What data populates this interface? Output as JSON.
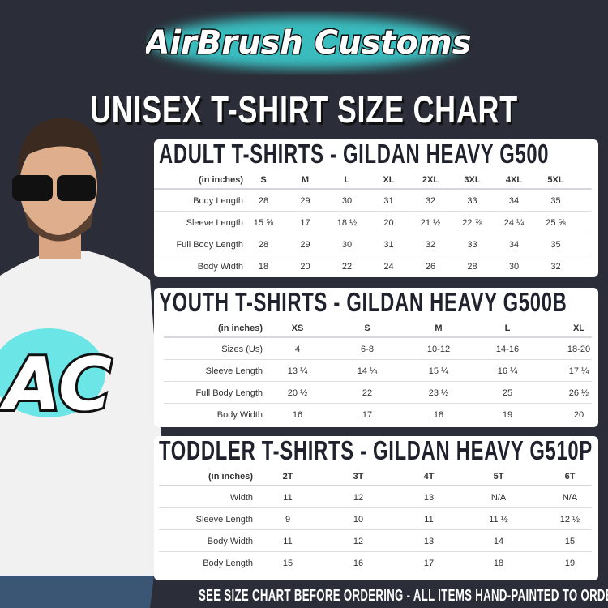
{
  "logo": {
    "text": "AirBrush Customs",
    "glow_color": "#3de0e0"
  },
  "title": "UNISEX T-SHIRT SIZE CHART",
  "colors": {
    "background": "#2b2e38",
    "panel": "#ffffff",
    "heading": "#1f222c",
    "accent": "#3de0e0"
  },
  "tables": [
    {
      "id": "adult",
      "title": "ADULT T-SHIRTS - GILDAN HEAVY G500",
      "unit_label": "(in inches)",
      "columns": [
        "S",
        "M",
        "L",
        "XL",
        "2XL",
        "3XL",
        "4XL",
        "5XL"
      ],
      "rows": [
        {
          "label": "Body Length",
          "values": [
            "28",
            "29",
            "30",
            "31",
            "32",
            "33",
            "34",
            "35"
          ]
        },
        {
          "label": "Sleeve Length",
          "values": [
            "15 ⅝",
            "17",
            "18 ½",
            "20",
            "21 ½",
            "22 ⅞",
            "24 ¼",
            "25 ⅝"
          ]
        },
        {
          "label": "Full Body Length",
          "values": [
            "28",
            "29",
            "30",
            "31",
            "32",
            "33",
            "34",
            "35"
          ]
        },
        {
          "label": "Body Width",
          "values": [
            "18",
            "20",
            "22",
            "24",
            "26",
            "28",
            "30",
            "32"
          ]
        }
      ]
    },
    {
      "id": "youth",
      "title": "YOUTH T-SHIRTS - GILDAN HEAVY G500B",
      "unit_label": "(in inches)",
      "columns": [
        "XS",
        "S",
        "M",
        "L",
        "XL"
      ],
      "rows": [
        {
          "label": "Sizes (Us)",
          "values": [
            "4",
            "6-8",
            "10-12",
            "14-16",
            "18-20"
          ]
        },
        {
          "label": "Sleeve Length",
          "values": [
            "13 ¼",
            "14 ¼",
            "15 ¼",
            "16 ¼",
            "17 ¼"
          ]
        },
        {
          "label": "Full Body Length",
          "values": [
            "20 ½",
            "22",
            "23 ½",
            "25",
            "26 ½"
          ]
        },
        {
          "label": "Body Width",
          "values": [
            "16",
            "17",
            "18",
            "19",
            "20"
          ]
        }
      ]
    },
    {
      "id": "toddler",
      "title": "TODDLER T-SHIRTS - GILDAN HEAVY G510P",
      "unit_label": "(in inches)",
      "columns": [
        "2T",
        "3T",
        "4T",
        "5T",
        "6T"
      ],
      "rows": [
        {
          "label": "Width",
          "values": [
            "11",
            "12",
            "13",
            "N/A",
            "N/A"
          ]
        },
        {
          "label": "Sleeve Length",
          "values": [
            "9",
            "10",
            "11",
            "11 ½",
            "12 ½"
          ]
        },
        {
          "label": "Body Width",
          "values": [
            "11",
            "12",
            "13",
            "14",
            "15"
          ]
        },
        {
          "label": "Body Length",
          "values": [
            "15",
            "16",
            "17",
            "18",
            "19"
          ]
        }
      ]
    }
  ],
  "footer": "SEE SIZE CHART BEFORE ORDERING - ALL ITEMS HAND-PAINTED TO ORDER"
}
